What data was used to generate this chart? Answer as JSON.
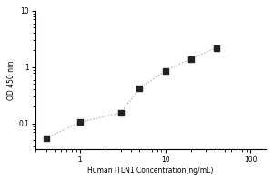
{
  "x_values": [
    0.4,
    1.0,
    3.0,
    5.0,
    10.0,
    20.0,
    40.0
  ],
  "y_values": [
    0.055,
    0.105,
    0.155,
    0.42,
    0.87,
    1.4,
    2.2
  ],
  "xlabel": "Human ITLN1 Concentration(ng/mL)",
  "ylabel": "OD 450 nm",
  "xlim": [
    0.3,
    150
  ],
  "ylim": [
    0.035,
    10
  ],
  "marker_color": "#222222",
  "line_color": "#aaaaaa",
  "background_color": "#ffffff",
  "label_fontsize": 5.5,
  "tick_fontsize": 5.5,
  "xtick_labels": [
    "1",
    "10",
    "100"
  ],
  "xtick_positions": [
    1,
    10,
    100
  ],
  "ytick_labels": [
    "0.1",
    "1",
    "10"
  ],
  "ytick_positions": [
    0.1,
    1,
    10
  ]
}
